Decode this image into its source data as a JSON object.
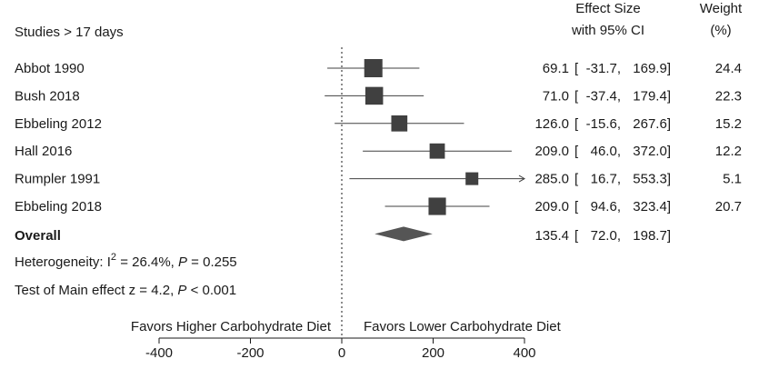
{
  "chart_data": {
    "type": "forest",
    "header": {
      "studies_label": "Studies > 17 days",
      "effect_label_line1": "Effect Size",
      "effect_label_line2": "with 95% CI",
      "weight_label_line1": "Weight",
      "weight_label_line2": "(%)"
    },
    "studies": [
      {
        "name": "Abbot 1990",
        "estimate": 69.1,
        "lower": -31.7,
        "upper": 169.9,
        "weight": 24.4,
        "estimate_text": "69.1",
        "lower_text": "-31.7,",
        "upper_text": "169.9]",
        "weight_text": "24.4"
      },
      {
        "name": "Bush 2018",
        "estimate": 71.0,
        "lower": -37.4,
        "upper": 179.4,
        "weight": 22.3,
        "estimate_text": "71.0",
        "lower_text": "-37.4,",
        "upper_text": "179.4]",
        "weight_text": "22.3"
      },
      {
        "name": "Ebbeling 2012",
        "estimate": 126.0,
        "lower": -15.6,
        "upper": 267.6,
        "weight": 15.2,
        "estimate_text": "126.0",
        "lower_text": "-15.6,",
        "upper_text": "267.6]",
        "weight_text": "15.2"
      },
      {
        "name": "Hall 2016",
        "estimate": 209.0,
        "lower": 46.0,
        "upper": 372.0,
        "weight": 12.2,
        "estimate_text": "209.0",
        "lower_text": "46.0,",
        "upper_text": "372.0]",
        "weight_text": "12.2"
      },
      {
        "name": "Rumpler 1991",
        "estimate": 285.0,
        "lower": 16.7,
        "upper": 553.3,
        "weight": 5.1,
        "estimate_text": "285.0",
        "lower_text": "16.7,",
        "upper_text": "553.3]",
        "weight_text": "5.1"
      },
      {
        "name": "Ebbeling 2018",
        "estimate": 209.0,
        "lower": 94.6,
        "upper": 323.4,
        "weight": 20.7,
        "estimate_text": "209.0",
        "lower_text": "94.6,",
        "upper_text": "323.4]",
        "weight_text": "20.7"
      }
    ],
    "overall": {
      "name": "Overall",
      "estimate": 135.4,
      "lower": 72.0,
      "upper": 198.7,
      "estimate_text": "135.4",
      "lower_text": "72.0,",
      "upper_text": "198.7]"
    },
    "heterogeneity": {
      "prefix": "Heterogeneity: I",
      "sup": "2",
      "mid": " = 26.4%, ",
      "p_label": "P",
      "p_value": " = 0.255"
    },
    "main_effect": {
      "prefix": "Test of Main effect z = 4.2, ",
      "p_label": "P",
      "p_value": " < 0.001"
    },
    "favors_left": "Favors Higher Carbohydrate Diet",
    "favors_right": "Favors Lower Carbohydrate Diet",
    "x_ticks": [
      -400,
      -200,
      0,
      200,
      400
    ],
    "x_tick_labels": [
      "-400",
      "-200",
      "0",
      "200",
      "400"
    ],
    "x_range": [
      -400,
      400
    ],
    "clip_marker": "arrow",
    "colors": {
      "marker": "#404040",
      "line": "#404040",
      "text": "#1a1a1a"
    }
  }
}
